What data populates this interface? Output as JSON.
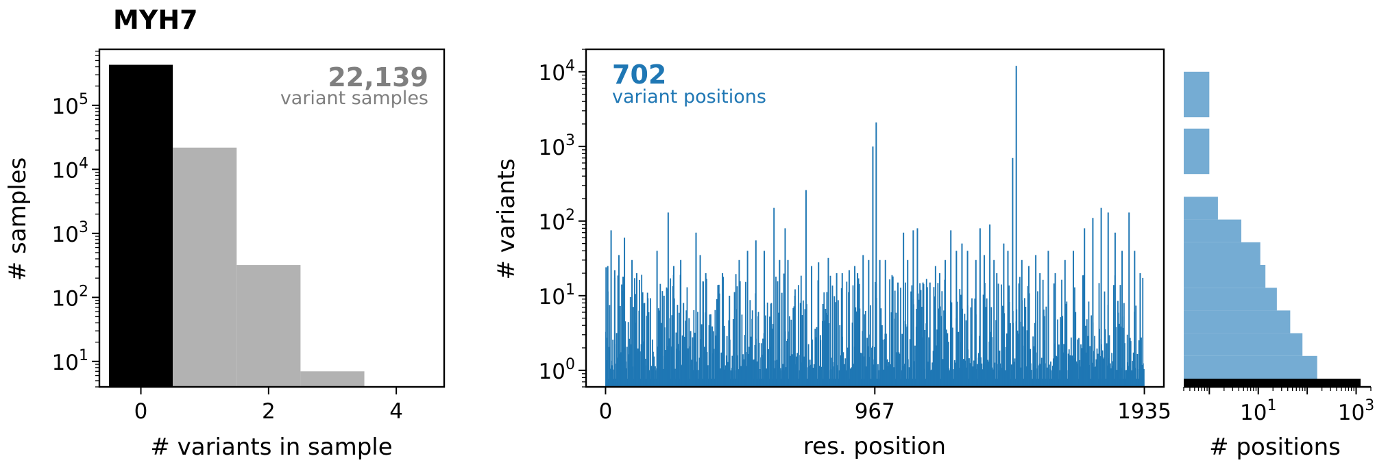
{
  "title": "MYH7",
  "colors": {
    "black": "#000000",
    "gray_bar": "#b2b2b2",
    "gray_text": "#7f7f7f",
    "blue": "#1f77b4",
    "light_blue": "#75acd3"
  },
  "chart_data": [
    {
      "type": "bar",
      "name": "samples-histogram",
      "xlabel": "# variants in sample",
      "ylabel": "# samples",
      "yscale": "log",
      "xlim": [
        -0.65,
        4.75
      ],
      "ylim": [
        4,
        750000
      ],
      "xticks": [
        0,
        2,
        4
      ],
      "yticks": [
        {
          "value": 10,
          "base": "10",
          "exp": "1"
        },
        {
          "value": 100,
          "base": "10",
          "exp": "2"
        },
        {
          "value": 1000,
          "base": "10",
          "exp": "3"
        },
        {
          "value": 10000,
          "base": "10",
          "exp": "4"
        },
        {
          "value": 100000,
          "base": "10",
          "exp": "5"
        }
      ],
      "categories": [
        0,
        1,
        2,
        3
      ],
      "values": [
        430000,
        21800,
        320,
        7
      ],
      "bar_colors": [
        "#000000",
        "#b2b2b2",
        "#b2b2b2",
        "#b2b2b2"
      ],
      "annotation": {
        "value": "22,139",
        "label": "variant samples"
      }
    },
    {
      "type": "bar",
      "name": "variants-per-position",
      "xlabel": "res. position",
      "ylabel": "# variants",
      "yscale": "log",
      "xlim": [
        -70,
        2005
      ],
      "ylim": [
        0.6,
        20000
      ],
      "xticks": [
        0,
        967,
        1935
      ],
      "yticks": [
        {
          "value": 1,
          "base": "10",
          "exp": "0"
        },
        {
          "value": 10,
          "base": "10",
          "exp": "1"
        },
        {
          "value": 100,
          "base": "10",
          "exp": "2"
        },
        {
          "value": 1000,
          "base": "10",
          "exp": "3"
        },
        {
          "value": 10000,
          "base": "10",
          "exp": "4"
        }
      ],
      "position_count": 1935,
      "variant_position_count": 702,
      "peaks": [
        {
          "x": 2,
          "y": 24
        },
        {
          "x": 8,
          "y": 25
        },
        {
          "x": 20,
          "y": 75
        },
        {
          "x": 33,
          "y": 22
        },
        {
          "x": 48,
          "y": 35
        },
        {
          "x": 63,
          "y": 18
        },
        {
          "x": 68,
          "y": 60
        },
        {
          "x": 95,
          "y": 30
        },
        {
          "x": 112,
          "y": 20
        },
        {
          "x": 140,
          "y": 8
        },
        {
          "x": 155,
          "y": 6
        },
        {
          "x": 185,
          "y": 40
        },
        {
          "x": 210,
          "y": 10
        },
        {
          "x": 225,
          "y": 130
        },
        {
          "x": 245,
          "y": 25
        },
        {
          "x": 270,
          "y": 30
        },
        {
          "x": 280,
          "y": 8
        },
        {
          "x": 300,
          "y": 5
        },
        {
          "x": 325,
          "y": 70
        },
        {
          "x": 340,
          "y": 35
        },
        {
          "x": 360,
          "y": 20
        },
        {
          "x": 400,
          "y": 9
        },
        {
          "x": 420,
          "y": 20
        },
        {
          "x": 445,
          "y": 10
        },
        {
          "x": 480,
          "y": 30
        },
        {
          "x": 510,
          "y": 40
        },
        {
          "x": 540,
          "y": 55
        },
        {
          "x": 570,
          "y": 40
        },
        {
          "x": 605,
          "y": 150
        },
        {
          "x": 625,
          "y": 30
        },
        {
          "x": 645,
          "y": 80
        },
        {
          "x": 655,
          "y": 30
        },
        {
          "x": 680,
          "y": 10
        },
        {
          "x": 700,
          "y": 8
        },
        {
          "x": 720,
          "y": 260
        },
        {
          "x": 740,
          "y": 25
        },
        {
          "x": 765,
          "y": 28
        },
        {
          "x": 800,
          "y": 32
        },
        {
          "x": 830,
          "y": 20
        },
        {
          "x": 850,
          "y": 20
        },
        {
          "x": 875,
          "y": 22
        },
        {
          "x": 895,
          "y": 25
        },
        {
          "x": 905,
          "y": 20
        },
        {
          "x": 925,
          "y": 35
        },
        {
          "x": 945,
          "y": 30
        },
        {
          "x": 960,
          "y": 1000
        },
        {
          "x": 972,
          "y": 2100
        },
        {
          "x": 985,
          "y": 30
        },
        {
          "x": 1005,
          "y": 30
        },
        {
          "x": 1030,
          "y": 12
        },
        {
          "x": 1050,
          "y": 15
        },
        {
          "x": 1070,
          "y": 70
        },
        {
          "x": 1085,
          "y": 30
        },
        {
          "x": 1105,
          "y": 75
        },
        {
          "x": 1120,
          "y": 80
        },
        {
          "x": 1140,
          "y": 15
        },
        {
          "x": 1165,
          "y": 15
        },
        {
          "x": 1185,
          "y": 25
        },
        {
          "x": 1200,
          "y": 20
        },
        {
          "x": 1220,
          "y": 30
        },
        {
          "x": 1240,
          "y": 75
        },
        {
          "x": 1260,
          "y": 40
        },
        {
          "x": 1280,
          "y": 50
        },
        {
          "x": 1300,
          "y": 40
        },
        {
          "x": 1330,
          "y": 30
        },
        {
          "x": 1345,
          "y": 80
        },
        {
          "x": 1360,
          "y": 35
        },
        {
          "x": 1380,
          "y": 90
        },
        {
          "x": 1395,
          "y": 30
        },
        {
          "x": 1405,
          "y": 20
        },
        {
          "x": 1430,
          "y": 50
        },
        {
          "x": 1445,
          "y": 40
        },
        {
          "x": 1462,
          "y": 700
        },
        {
          "x": 1475,
          "y": 12000
        },
        {
          "x": 1495,
          "y": 30
        },
        {
          "x": 1520,
          "y": 25
        },
        {
          "x": 1545,
          "y": 35
        },
        {
          "x": 1560,
          "y": 20
        },
        {
          "x": 1590,
          "y": 40
        },
        {
          "x": 1615,
          "y": 20
        },
        {
          "x": 1650,
          "y": 30
        },
        {
          "x": 1680,
          "y": 40
        },
        {
          "x": 1720,
          "y": 80
        },
        {
          "x": 1750,
          "y": 110
        },
        {
          "x": 1780,
          "y": 150
        },
        {
          "x": 1805,
          "y": 130
        },
        {
          "x": 1830,
          "y": 70
        },
        {
          "x": 1855,
          "y": 40
        },
        {
          "x": 1880,
          "y": 130
        },
        {
          "x": 1900,
          "y": 40
        },
        {
          "x": 1920,
          "y": 20
        }
      ],
      "annotation": {
        "value": "702",
        "label": "variant positions"
      }
    },
    {
      "type": "bar",
      "orientation": "horizontal",
      "name": "positions-histogram",
      "xlabel": "# positions",
      "xscale": "log",
      "xlim": [
        0.3,
        2000
      ],
      "xticks": [
        {
          "value": 10,
          "base": "10",
          "exp": "1"
        },
        {
          "value": 1000,
          "base": "10",
          "exp": "3"
        }
      ],
      "bins": [
        {
          "level": 0,
          "count": 1233,
          "color": "#000000"
        },
        {
          "level": 0.5,
          "count": 160
        },
        {
          "level": 1.5,
          "count": 80
        },
        {
          "level": 2.5,
          "count": 45
        },
        {
          "level": 3.5,
          "count": 24
        },
        {
          "level": 4.5,
          "count": 14
        },
        {
          "level": 5.5,
          "count": 11
        },
        {
          "level": 6.5,
          "count": 4.5
        },
        {
          "level": 7.5,
          "count": 1.5
        },
        {
          "level": 9.5,
          "count": 1
        },
        {
          "level": 10.5,
          "count": 1
        },
        {
          "level": 12,
          "count": 1
        },
        {
          "level": 13,
          "count": 1
        }
      ]
    }
  ]
}
